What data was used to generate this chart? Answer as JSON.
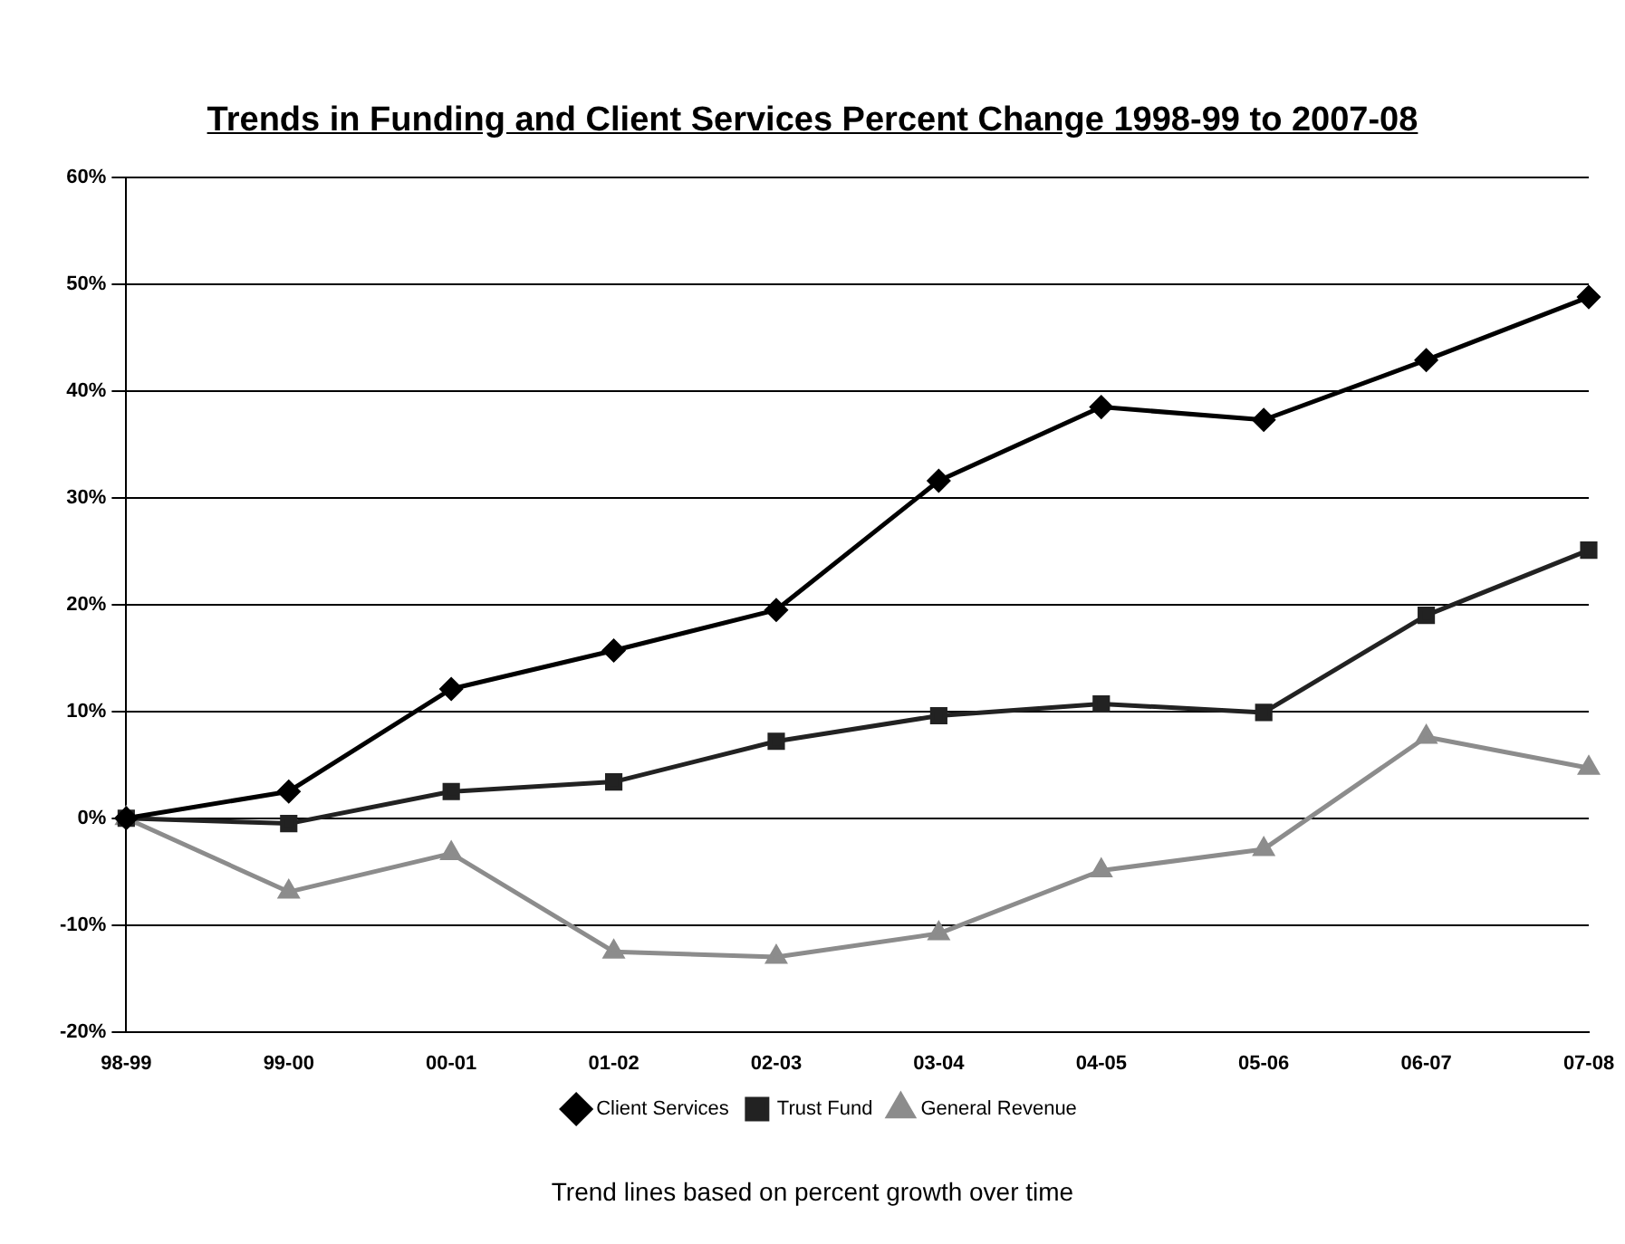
{
  "chart_data": {
    "type": "line",
    "title": "Trends in Funding and Client Services Percent Change 1998-99 to 2007-08",
    "categories": [
      "98-99",
      "99-00",
      "00-01",
      "01-02",
      "02-03",
      "03-04",
      "04-05",
      "05-06",
      "06-07",
      "07-08"
    ],
    "series": [
      {
        "name": "Client Services",
        "color": "#000000",
        "marker": "diamond",
        "values": [
          0,
          2.5,
          12.1,
          15.7,
          19.5,
          31.6,
          38.5,
          37.3,
          42.9,
          48.8
        ]
      },
      {
        "name": "Trust Fund",
        "color": "#222222",
        "marker": "square",
        "values": [
          0,
          -0.5,
          2.5,
          3.4,
          7.2,
          9.6,
          10.7,
          9.9,
          19,
          25.1
        ]
      },
      {
        "name": "General Revenue",
        "color": "#8c8c8c",
        "marker": "triangle",
        "values": [
          0,
          -6.9,
          -3.3,
          -12.5,
          -13,
          -10.8,
          -4.9,
          -2.9,
          7.6,
          4.7
        ]
      }
    ],
    "ylim": [
      -20,
      60
    ],
    "yticks": [
      {
        "value": -20,
        "label": "-20%"
      },
      {
        "value": -10,
        "label": "-10%"
      },
      {
        "value": 0,
        "label": "0%"
      },
      {
        "value": 10,
        "label": "10%"
      },
      {
        "value": 20,
        "label": "20%"
      },
      {
        "value": 30,
        "label": "30%"
      },
      {
        "value": 40,
        "label": "40%"
      },
      {
        "value": 50,
        "label": "50%"
      },
      {
        "value": 60,
        "label": "60%"
      }
    ],
    "grid": "y",
    "legend": "bottom",
    "line_style": "solid",
    "annotations": [
      "Trend lines based on percent growth over time"
    ]
  }
}
